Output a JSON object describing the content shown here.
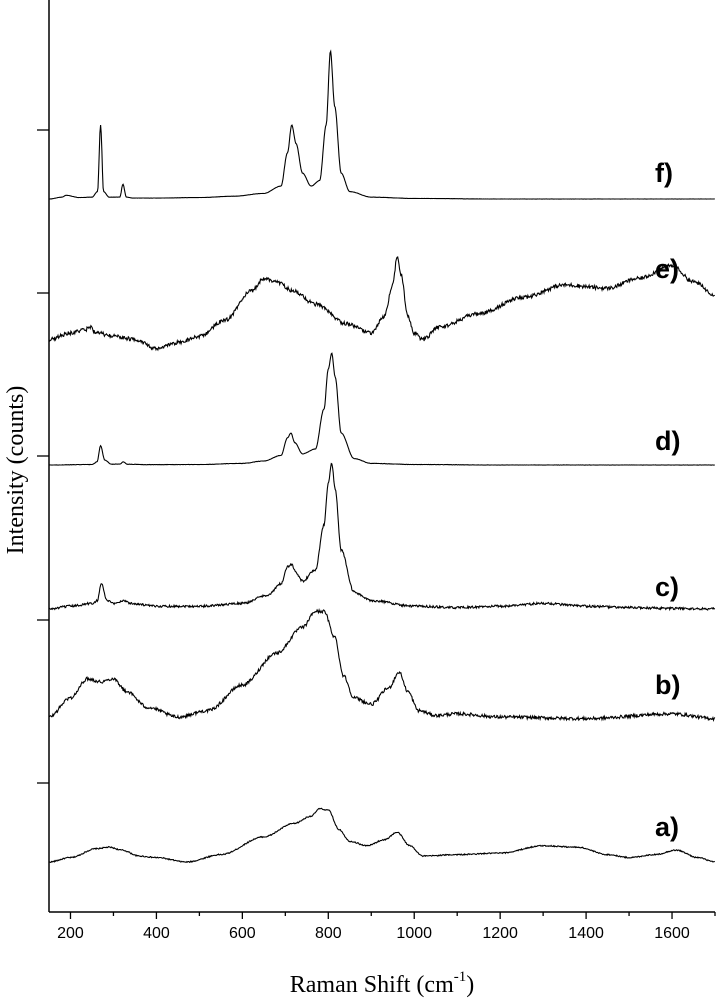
{
  "chart_data": {
    "type": "line",
    "title": "",
    "xlabel": "Raman Shift (cm",
    "xlabel_sup": "-1",
    "xlabel_end": ")",
    "ylabel": "Intensity (counts)",
    "xlim": [
      150,
      1700
    ],
    "x_ticks": [
      200,
      400,
      600,
      800,
      1000,
      1200,
      1400,
      1600
    ],
    "y_tick_labels_shown": false,
    "grid": false,
    "legend": "none",
    "colors": {
      "line": "#000000",
      "background": "#ffffff"
    },
    "series": [
      {
        "name": "a)",
        "noise": 0.4,
        "x": [
          150,
          200,
          260,
          290,
          320,
          360,
          400,
          470,
          550,
          650,
          720,
          760,
          780,
          800,
          825,
          850,
          890,
          930,
          960,
          990,
          1020,
          1100,
          1200,
          1300,
          1380,
          1450,
          1500,
          1560,
          1610,
          1660,
          1700
        ],
        "y": [
          0,
          3,
          9,
          10,
          8,
          4,
          3,
          0,
          5,
          17,
          26,
          31,
          36,
          35,
          22,
          14,
          11,
          15,
          20,
          11,
          4,
          5,
          6,
          11,
          10,
          5,
          3,
          5,
          8,
          3,
          0
        ]
      },
      {
        "name": "b)",
        "noise": 0.5,
        "x": [
          150,
          200,
          240,
          270,
          300,
          330,
          380,
          450,
          520,
          600,
          680,
          740,
          770,
          790,
          815,
          835,
          860,
          900,
          940,
          965,
          985,
          1010,
          1050,
          1100,
          1200,
          1400,
          1600,
          1700
        ],
        "y": [
          0,
          6,
          12,
          11,
          12,
          8,
          3,
          0,
          2,
          10,
          20,
          28,
          33,
          33,
          25,
          13,
          6,
          4,
          9,
          14,
          8,
          2,
          0.5,
          1,
          0,
          -0.5,
          1,
          -0.5
        ]
      },
      {
        "name": "c)",
        "noise": 0.4,
        "x": [
          150,
          200,
          250,
          262,
          272,
          285,
          300,
          326,
          340,
          400,
          500,
          600,
          660,
          690,
          705,
          714,
          725,
          740,
          770,
          790,
          800,
          808,
          816,
          830,
          860,
          900,
          1000,
          1100,
          1200,
          1300,
          1400,
          1500,
          1600,
          1700
        ],
        "y": [
          0,
          1,
          2,
          3,
          9,
          3,
          2,
          3,
          2,
          1,
          1,
          2,
          5,
          9,
          15,
          16,
          13,
          10,
          14,
          30,
          45,
          52,
          43,
          21,
          6,
          3,
          1,
          0.5,
          1,
          2,
          1,
          0.5,
          0.2,
          0
        ]
      },
      {
        "name": "d)",
        "noise": 0.1,
        "x": [
          150,
          250,
          262,
          270,
          280,
          295,
          315,
          323,
          332,
          380,
          500,
          600,
          650,
          690,
          705,
          713,
          722,
          740,
          770,
          790,
          800,
          808,
          816,
          830,
          860,
          900,
          1000,
          1200,
          1500,
          1700
        ],
        "y": [
          0,
          0.3,
          2,
          12,
          3,
          0.5,
          0.5,
          2,
          0.5,
          0.2,
          0.3,
          1,
          2.5,
          6,
          17,
          20,
          14,
          7,
          10,
          35,
          60,
          70,
          55,
          20,
          4,
          1,
          0.3,
          0,
          0,
          0
        ]
      },
      {
        "name": "e)",
        "noise": 0.6,
        "x": [
          150,
          200,
          235,
          245,
          260,
          300,
          350,
          400,
          450,
          500,
          560,
          620,
          650,
          680,
          720,
          770,
          840,
          900,
          930,
          950,
          960,
          970,
          985,
          1000,
          1020,
          1060,
          1150,
          1250,
          1350,
          1450,
          1520,
          1600,
          1650,
          1700
        ],
        "y": [
          3,
          5,
          6,
          7,
          5,
          4,
          3,
          0,
          2,
          4,
          9,
          18,
          22,
          21,
          18,
          14,
          8,
          5,
          10,
          20,
          29,
          23,
          10,
          5,
          3,
          7,
          11,
          16,
          20,
          19,
          22,
          26,
          21,
          17
        ]
      },
      {
        "name": "f)",
        "noise": 0.05,
        "x": [
          150,
          180,
          190,
          220,
          250,
          263,
          270,
          277,
          290,
          315,
          322,
          330,
          345,
          400,
          500,
          580,
          650,
          690,
          705,
          715,
          725,
          740,
          760,
          780,
          795,
          805,
          815,
          830,
          850,
          900,
          1000,
          1200,
          1500,
          1700
        ],
        "y": [
          0,
          1,
          2,
          0.8,
          1,
          4,
          40,
          4,
          1,
          1,
          8,
          1,
          0.5,
          0.5,
          0.8,
          1.5,
          3,
          7,
          25,
          40,
          30,
          14,
          7,
          10,
          40,
          80,
          50,
          14,
          4,
          1,
          0.3,
          0,
          0,
          0
        ]
      }
    ]
  }
}
